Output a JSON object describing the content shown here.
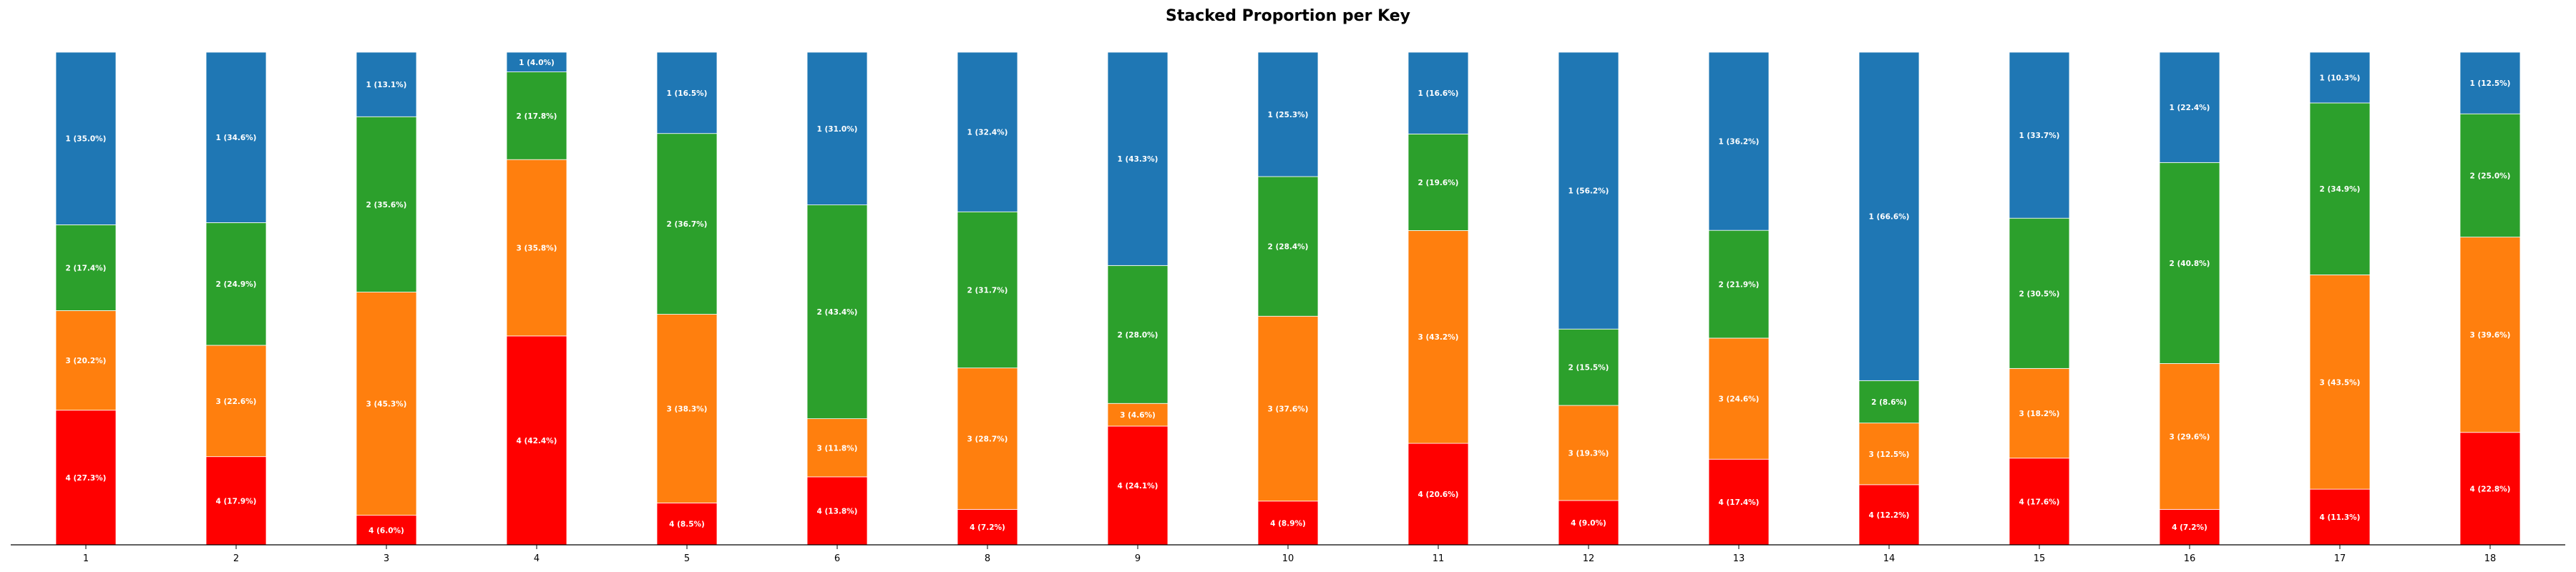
{
  "chart_data": {
    "type": "bar",
    "stacked": true,
    "title": "Stacked Proportion per Key",
    "xlabel": "",
    "ylabel": "",
    "ylim": [
      0,
      100
    ],
    "grid": false,
    "legend": "none",
    "categories": [
      "1",
      "2",
      "3",
      "4",
      "5",
      "6",
      "8",
      "9",
      "10",
      "11",
      "12",
      "13",
      "14",
      "15",
      "16",
      "17",
      "18"
    ],
    "series": [
      {
        "name": "4",
        "color": "#ff0000",
        "values": [
          27.3,
          17.9,
          6.0,
          42.4,
          8.5,
          13.8,
          7.2,
          24.1,
          8.9,
          20.6,
          9.0,
          17.4,
          12.2,
          17.6,
          7.2,
          11.3,
          22.8
        ]
      },
      {
        "name": "3",
        "color": "#ff7f0e",
        "values": [
          20.2,
          22.6,
          45.3,
          35.8,
          38.3,
          11.8,
          28.7,
          4.6,
          37.6,
          43.2,
          19.3,
          24.6,
          12.5,
          18.2,
          29.6,
          43.5,
          39.6
        ]
      },
      {
        "name": "2",
        "color": "#2ca02c",
        "values": [
          17.4,
          24.9,
          35.6,
          17.8,
          36.7,
          43.4,
          31.7,
          28.0,
          28.4,
          19.6,
          15.5,
          21.9,
          8.6,
          30.5,
          40.8,
          34.9,
          25.0
        ]
      },
      {
        "name": "1",
        "color": "#1f77b4",
        "values": [
          35.0,
          34.6,
          13.1,
          4.0,
          16.5,
          31.0,
          32.4,
          43.3,
          25.3,
          16.6,
          56.2,
          36.2,
          66.6,
          33.7,
          22.4,
          10.3,
          12.5
        ]
      }
    ]
  }
}
